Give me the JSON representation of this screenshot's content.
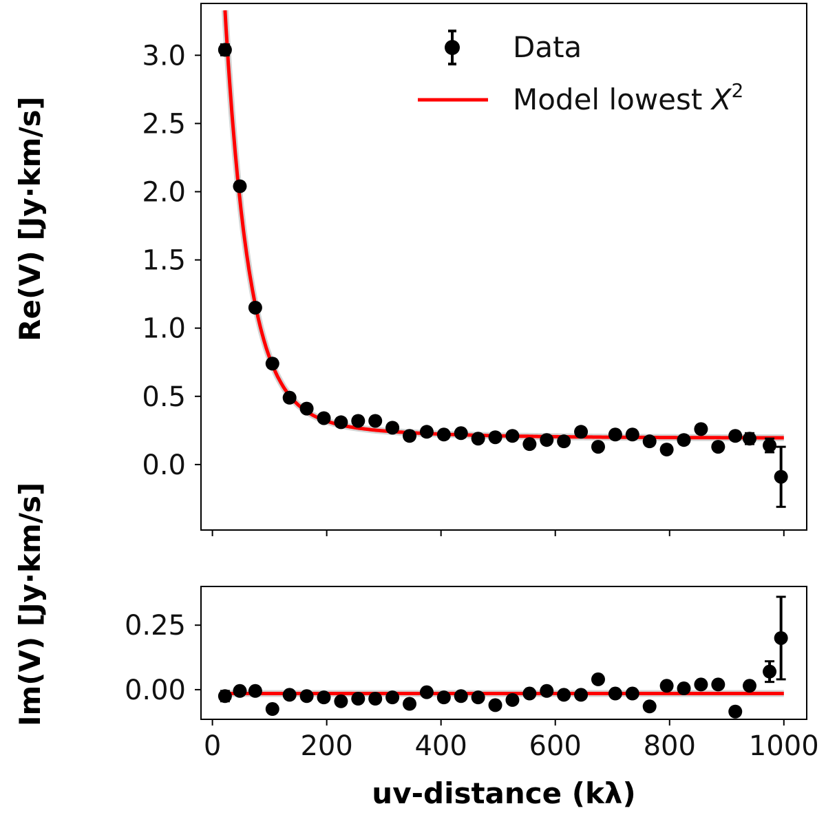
{
  "chart_data": [
    {
      "panel": "top",
      "type": "scatter",
      "ylabel": "Re(V) [Jy·km/s]",
      "xlim": [
        -20,
        1040
      ],
      "ylim": [
        -0.48,
        3.38
      ],
      "yticks": [
        0.0,
        0.5,
        1.0,
        1.5,
        2.0,
        2.5,
        3.0
      ],
      "ytick_labels": [
        "0.0",
        "0.5",
        "1.0",
        "1.5",
        "2.0",
        "2.5",
        "3.0"
      ],
      "xticks": [
        0,
        200,
        400,
        600,
        800,
        1000
      ],
      "series": [
        {
          "name": "Data",
          "kind": "errorbar",
          "x": [
            22,
            48,
            75,
            105,
            135,
            165,
            195,
            225,
            255,
            285,
            315,
            345,
            375,
            405,
            435,
            465,
            495,
            525,
            555,
            585,
            615,
            645,
            675,
            705,
            735,
            765,
            795,
            825,
            855,
            885,
            915,
            940,
            975,
            995
          ],
          "y": [
            3.04,
            2.04,
            1.15,
            0.74,
            0.49,
            0.41,
            0.34,
            0.31,
            0.32,
            0.32,
            0.27,
            0.21,
            0.24,
            0.22,
            0.23,
            0.19,
            0.2,
            0.21,
            0.15,
            0.18,
            0.17,
            0.24,
            0.13,
            0.22,
            0.22,
            0.17,
            0.11,
            0.18,
            0.26,
            0.13,
            0.21,
            0.19,
            0.14,
            -0.09
          ],
          "yerr": [
            0.04,
            0.03,
            0.03,
            0.03,
            0.03,
            0.03,
            0.03,
            0.03,
            0.03,
            0.03,
            0.03,
            0.03,
            0.03,
            0.03,
            0.03,
            0.03,
            0.03,
            0.03,
            0.03,
            0.03,
            0.03,
            0.03,
            0.03,
            0.03,
            0.03,
            0.03,
            0.03,
            0.03,
            0.03,
            0.03,
            0.03,
            0.04,
            0.05,
            0.22
          ]
        },
        {
          "name": "Model lowest X²",
          "kind": "line",
          "model": {
            "c": 0.195,
            "a1": 4.95,
            "k1": 0.0241,
            "a2": 0.25,
            "k2": 0.0055,
            "x_start": 22,
            "x_end": 1000
          }
        }
      ]
    },
    {
      "panel": "bottom",
      "type": "scatter",
      "ylabel": "Im(V) [Jy·km/s]",
      "xlabel": "uv-distance (kλ)",
      "xlim": [
        -20,
        1040
      ],
      "ylim": [
        -0.115,
        0.4
      ],
      "yticks": [
        0.0,
        0.25
      ],
      "ytick_labels": [
        "0.00",
        "0.25"
      ],
      "xticks": [
        0,
        200,
        400,
        600,
        800,
        1000
      ],
      "xtick_labels": [
        "0",
        "200",
        "400",
        "600",
        "800",
        "1000"
      ],
      "series": [
        {
          "name": "Data",
          "kind": "errorbar",
          "x": [
            22,
            48,
            75,
            105,
            135,
            165,
            195,
            225,
            255,
            285,
            315,
            345,
            375,
            405,
            435,
            465,
            495,
            525,
            555,
            585,
            615,
            645,
            675,
            705,
            735,
            765,
            795,
            825,
            855,
            885,
            915,
            940,
            975,
            995
          ],
          "y": [
            -0.025,
            -0.005,
            -0.005,
            -0.075,
            -0.02,
            -0.025,
            -0.03,
            -0.045,
            -0.035,
            -0.035,
            -0.03,
            -0.055,
            -0.01,
            -0.03,
            -0.025,
            -0.03,
            -0.06,
            -0.04,
            -0.015,
            -0.005,
            -0.02,
            -0.02,
            0.04,
            -0.015,
            -0.015,
            -0.065,
            0.015,
            0.005,
            0.02,
            0.02,
            -0.085,
            0.015,
            0.07,
            0.2
          ],
          "yerr": [
            0.02,
            0.01,
            0.01,
            0.01,
            0.01,
            0.01,
            0.01,
            0.01,
            0.01,
            0.01,
            0.01,
            0.01,
            0.01,
            0.01,
            0.01,
            0.01,
            0.01,
            0.01,
            0.01,
            0.01,
            0.01,
            0.01,
            0.01,
            0.01,
            0.01,
            0.01,
            0.01,
            0.01,
            0.01,
            0.015,
            0.015,
            0.015,
            0.04,
            0.16
          ]
        },
        {
          "name": "Model lowest X²",
          "kind": "line",
          "x": [
            22,
            1000
          ],
          "y": [
            -0.015,
            -0.015
          ]
        }
      ]
    }
  ],
  "legend": {
    "data_label": "Data",
    "model_label_prefix": "Model lowest ",
    "model_label_var": "X",
    "model_label_exp": "2"
  },
  "colors": {
    "data": "#000000",
    "model": "#ff0000",
    "axis": "#000000"
  }
}
